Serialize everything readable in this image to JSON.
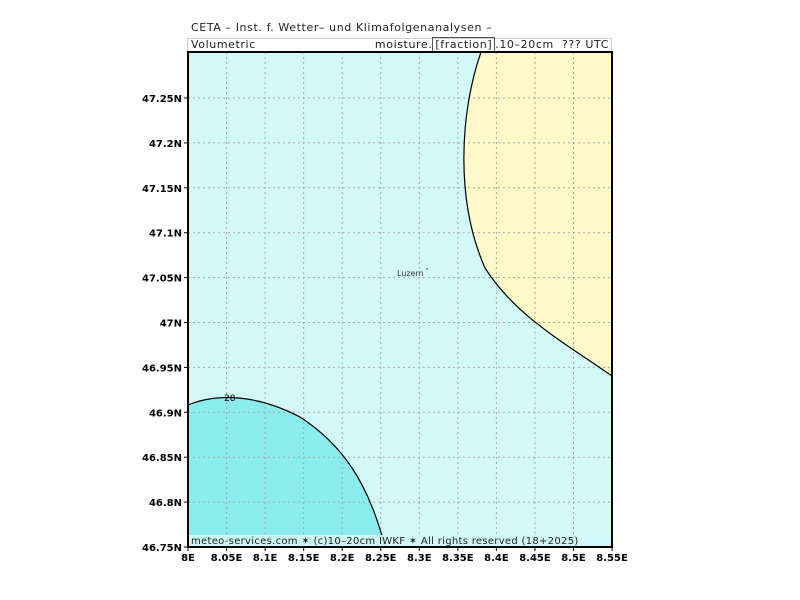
{
  "header": {
    "title": "CETA – Inst. f. Wetter– und Klimafolgenanalysen –",
    "subtitle_left": "Volumetric",
    "subtitle_right_pre": "moisture.",
    "subtitle_right_boxed": "[fraction]",
    "subtitle_right_post": ".10–20cm  ??? UTC"
  },
  "map": {
    "x_ticks": [
      "8E",
      "8.05E",
      "8.1E",
      "8.15E",
      "8.2E",
      "8.25E",
      "8.3E",
      "8.35E",
      "8.4E",
      "8.45E",
      "8.5E",
      "8.55E"
    ],
    "y_ticks": [
      "46.75N",
      "46.8N",
      "46.85N",
      "46.9N",
      "46.95N",
      "47N",
      "47.05N",
      "47.1N",
      "47.15N",
      "47.2N",
      "47.25N"
    ],
    "city_label": "Luzern",
    "contour_label": "28",
    "footer": "meteo-services.com ✶ (c)10–20cm IWKF ✶ All rights reserved (18+2025)",
    "colors": {
      "base": "#d2f8f8",
      "high": "#8aecec",
      "low": "#fff8c8",
      "grid": "#a8a8a8",
      "frame": "#000000"
    }
  }
}
